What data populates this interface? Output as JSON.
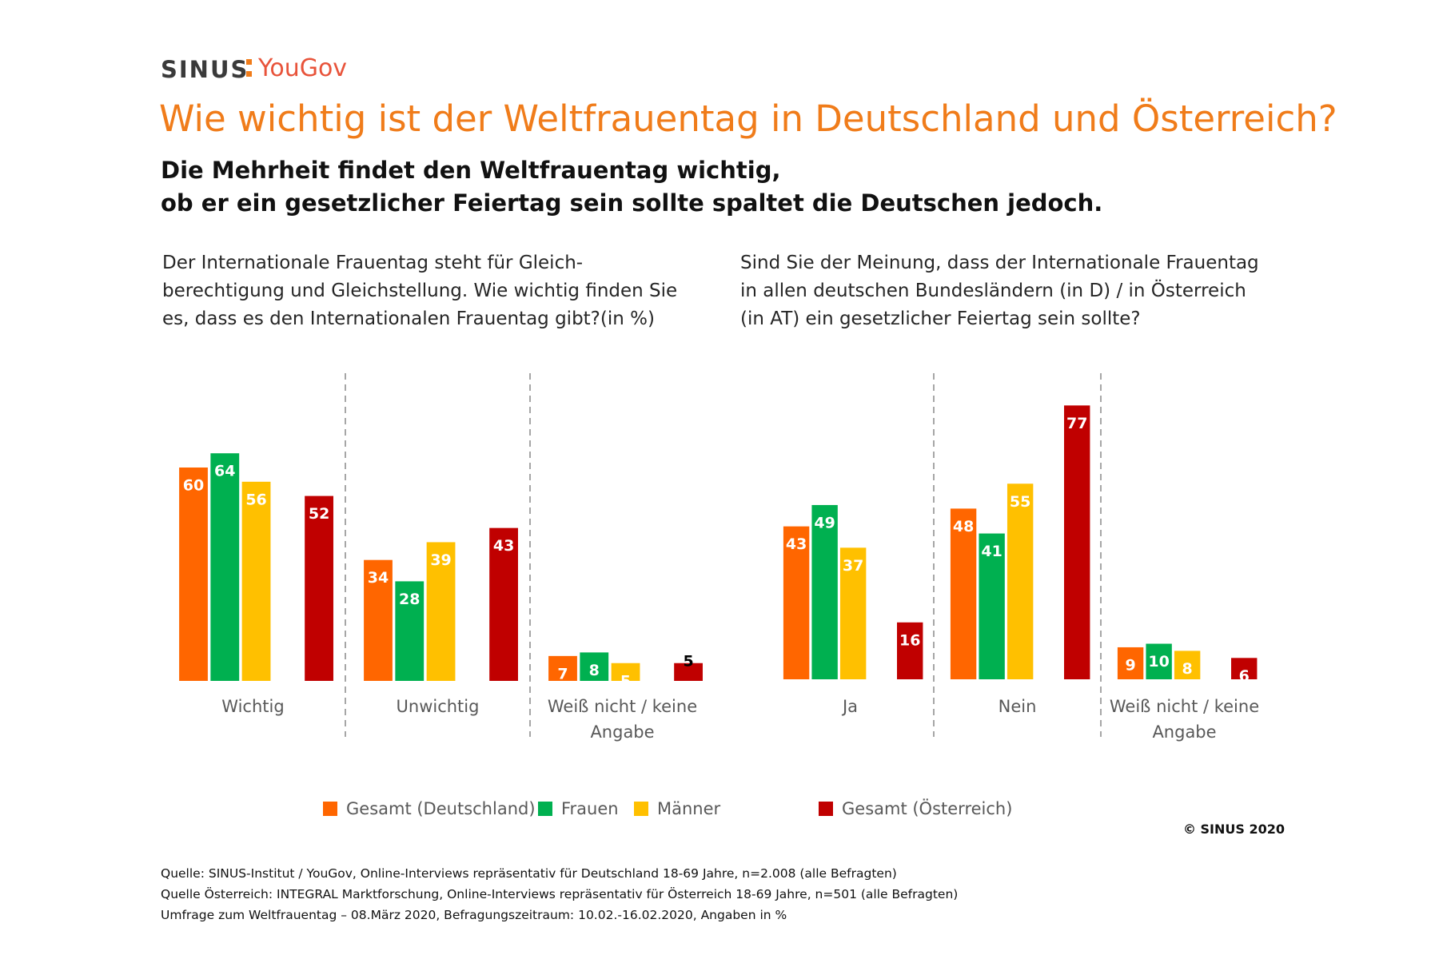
{
  "header": {
    "logo": [
      "SINUS",
      "YouGov"
    ],
    "title": "Wie wichtig ist der Weltfrauentag in Deutschland und Österreich?",
    "subtitle": [
      "Die Mehrheit findet den Weltfrauentag wichtig,",
      "ob er ein gesetzlicher Feiertag sein sollte spaltet die Deutschen jedoch."
    ]
  },
  "chart_data": [
    {
      "type": "bar",
      "question": [
        "Der Internationale Frauentag steht für Gleich-",
        "berechtigung und Gleichstellung. Wie wichtig finden Sie",
        "es, dass es den Internationalen Frauentag gibt?(in %)"
      ],
      "categories": [
        "Wichtig",
        "Unwichtig",
        "Weiß nicht / keine Angabe"
      ],
      "series": [
        {
          "name": "Gesamt (Deutschland)",
          "color": "#ff6600",
          "values": [
            60,
            34,
            7
          ]
        },
        {
          "name": "Frauen",
          "color": "#00b050",
          "values": [
            64,
            28,
            8
          ]
        },
        {
          "name": "Männer",
          "color": "#ffc000",
          "values": [
            56,
            39,
            5
          ]
        },
        {
          "name": "Gesamt (Österreich)",
          "color": "#c00000",
          "values": [
            52,
            43,
            5
          ]
        }
      ]
    },
    {
      "type": "bar",
      "question": [
        "Sind Sie der Meinung, dass der Internationale Frauentag",
        "in allen deutschen Bundesländern (in D) / in Österreich",
        "(in AT) ein gesetzlicher Feiertag sein sollte?"
      ],
      "categories": [
        "Ja",
        "Nein",
        "Weiß nicht / keine Angabe"
      ],
      "series": [
        {
          "name": "Gesamt (Deutschland)",
          "color": "#ff6600",
          "values": [
            43,
            48,
            9
          ]
        },
        {
          "name": "Frauen",
          "color": "#00b050",
          "values": [
            49,
            41,
            10
          ]
        },
        {
          "name": "Männer",
          "color": "#ffc000",
          "values": [
            37,
            55,
            8
          ]
        },
        {
          "name": "Gesamt (Österreich)",
          "color": "#c00000",
          "values": [
            16,
            77,
            6
          ]
        }
      ]
    }
  ],
  "copyright": "© SINUS 2020",
  "sources": [
    "Quelle: SINUS-Institut / YouGov, Online-Interviews repräsentativ für Deutschland 18-69 Jahre, n=2.008 (alle Befragten)",
    "Quelle Österreich: INTEGRAL Marktforschung, Online-Interviews repräsentativ für Österreich 18-69 Jahre, n=501 (alle Befragten)",
    "Umfrage zum Weltfrauentag – 08.März 2020, Befragungszeitraum: 10.02.-16.02.2020, Angaben in %"
  ]
}
